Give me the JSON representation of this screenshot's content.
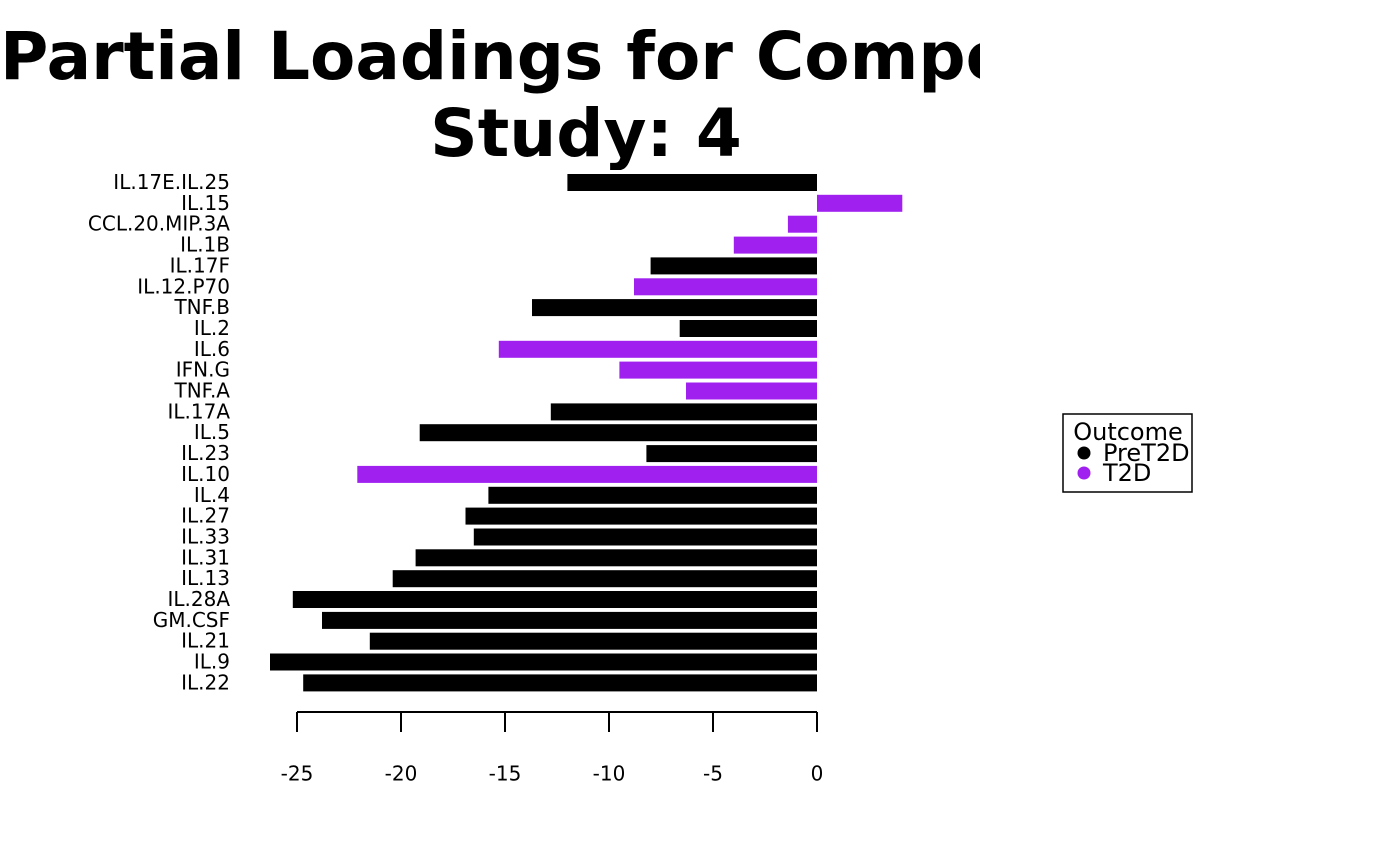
{
  "chart_data": {
    "type": "bar",
    "orientation": "horizontal",
    "title": "Partial Loadings for Component",
    "subtitle": "Study: 4",
    "categories": [
      "IL.17E.IL.25",
      "IL.15",
      "CCL.20.MIP.3A",
      "IL.1B",
      "IL.17F",
      "IL.12.P70",
      "TNF.B",
      "IL.2",
      "IL.6",
      "IFN.G",
      "TNF.A",
      "IL.17A",
      "IL.5",
      "IL.23",
      "IL.10",
      "IL.4",
      "IL.27",
      "IL.33",
      "IL.31",
      "IL.13",
      "IL.28A",
      "GM.CSF",
      "IL.21",
      "IL.9",
      "IL.22"
    ],
    "values": [
      -12.0,
      4.1,
      -1.4,
      -4.0,
      -8.0,
      -8.8,
      -13.7,
      -6.6,
      -15.3,
      -9.5,
      -6.3,
      -12.8,
      -19.1,
      -8.2,
      -22.1,
      -15.8,
      -16.9,
      -16.5,
      -19.3,
      -20.4,
      -25.2,
      -23.8,
      -21.5,
      -26.3,
      -24.7
    ],
    "groups": [
      "PreT2D",
      "T2D",
      "T2D",
      "T2D",
      "PreT2D",
      "T2D",
      "PreT2D",
      "PreT2D",
      "T2D",
      "T2D",
      "T2D",
      "PreT2D",
      "PreT2D",
      "PreT2D",
      "T2D",
      "PreT2D",
      "PreT2D",
      "PreT2D",
      "PreT2D",
      "PreT2D",
      "PreT2D",
      "PreT2D",
      "PreT2D",
      "PreT2D",
      "PreT2D"
    ],
    "xticks": [
      -25,
      -20,
      -15,
      -10,
      -5,
      0
    ],
    "xlim": [
      -25,
      5
    ],
    "legend": {
      "title": "Outcome",
      "placement": "right",
      "entries": [
        {
          "label": "PreT2D",
          "color": "#000000"
        },
        {
          "label": "T2D",
          "color": "#a020f0"
        }
      ]
    }
  }
}
